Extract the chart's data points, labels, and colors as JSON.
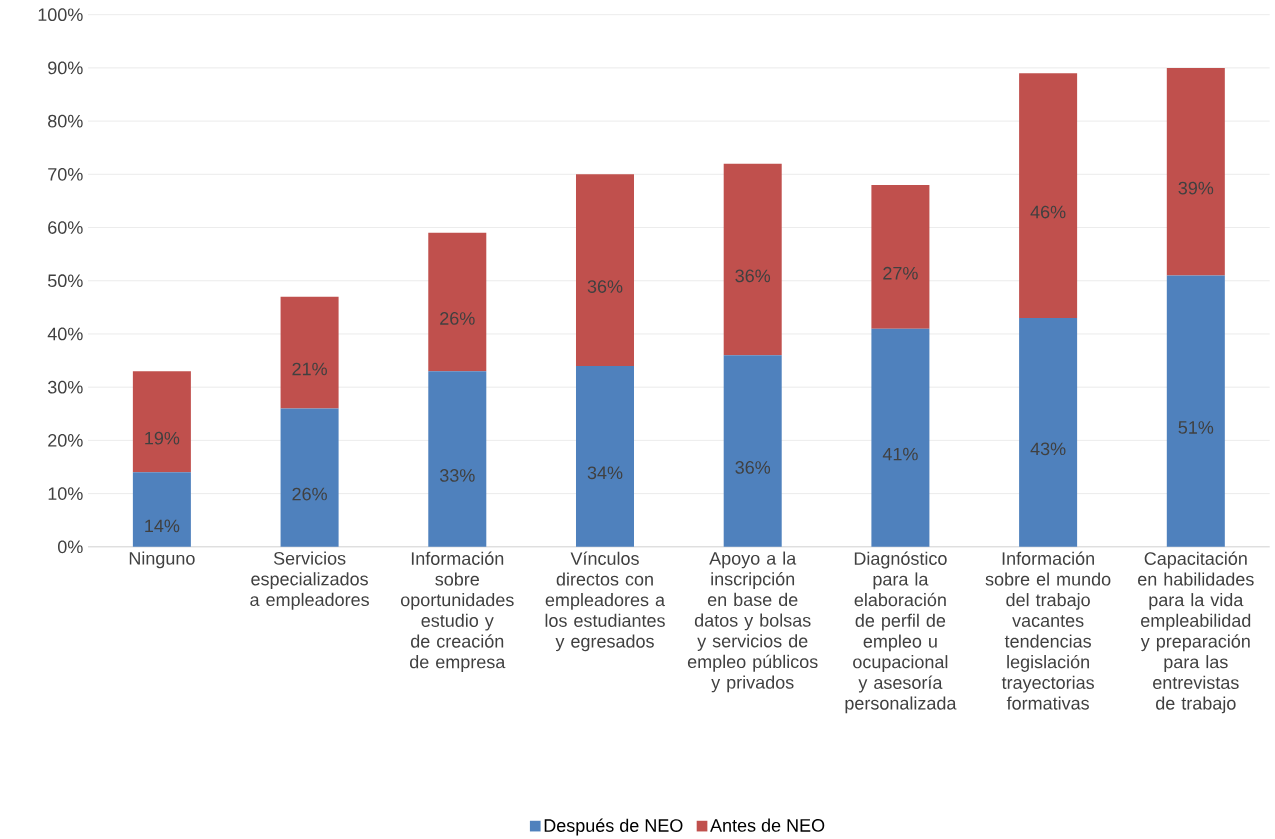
{
  "chart_data": {
    "type": "bar",
    "stacked": true,
    "categories": [
      "Ninguno",
      "Servicios especializados a empleadores",
      "Información sobre oportunidades estudio y de creación de empresa",
      "Vínculos directos con empleadores a los estudiantes y egresados",
      "Apoyo a la inscripción en base de datos y bolsas y servicios de empleo públicos y privados",
      "Diagnóstico para la elaboración de perfil de empleo u ocupacional y asesoría personalizada",
      "Información sobre el mundo del trabajo vacantes tendencias legislación trayectorias formativas",
      "Capacitación en habilidades para la vida empleabilidad y preparación para las entrevistas de trabajo"
    ],
    "series": [
      {
        "name": "Después de NEO",
        "color": "#4f81bd",
        "values": [
          14,
          26,
          33,
          34,
          36,
          41,
          43,
          51
        ],
        "value_labels": [
          "14%",
          "26%",
          "33%",
          "34%",
          "36%",
          "41%",
          "43%",
          "51%"
        ]
      },
      {
        "name": "Antes de NEO",
        "color": "#c0504d",
        "values": [
          19,
          21,
          26,
          36,
          36,
          27,
          46,
          39
        ],
        "value_labels": [
          "19%",
          "21%",
          "26%",
          "36%",
          "36%",
          "27%",
          "46%",
          "39%"
        ]
      }
    ],
    "ylim": [
      0,
      100
    ],
    "yticks": [
      {
        "value": 0,
        "label": "0%"
      },
      {
        "value": 10,
        "label": "10%"
      },
      {
        "value": 20,
        "label": "20%"
      },
      {
        "value": 30,
        "label": "30%"
      },
      {
        "value": 40,
        "label": "40%"
      },
      {
        "value": 50,
        "label": "50%"
      },
      {
        "value": 60,
        "label": "60%"
      },
      {
        "value": 70,
        "label": "70%"
      },
      {
        "value": 80,
        "label": "80%"
      },
      {
        "value": 90,
        "label": "90%"
      },
      {
        "value": 100,
        "label": "100%"
      }
    ],
    "grid": "y",
    "legend": "bottom"
  }
}
